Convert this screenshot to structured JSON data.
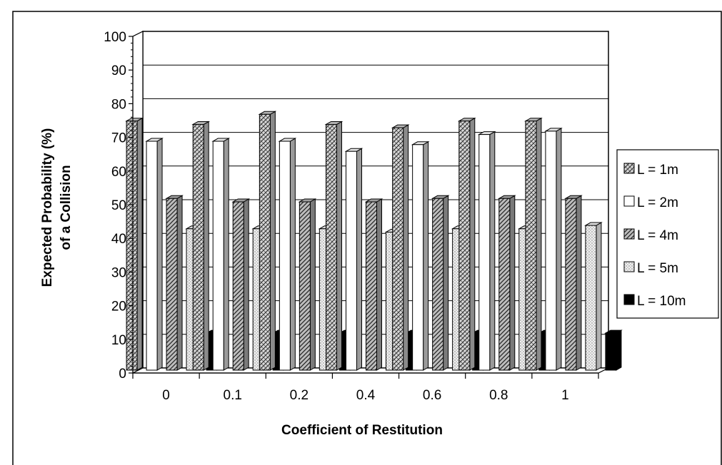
{
  "chart_data": {
    "type": "bar",
    "xlabel": "Coefficient of Restitution",
    "ylabel_lines": [
      "Expected Probability (%)",
      "of a Collision"
    ],
    "ylim": [
      0,
      100
    ],
    "yticks": [
      0,
      10,
      20,
      30,
      40,
      50,
      60,
      70,
      80,
      90,
      100
    ],
    "grid": true,
    "legend_position": "right",
    "categories": [
      "0",
      "0.1",
      "0.2",
      "0.4",
      "0.6",
      "0.8",
      "1"
    ],
    "series": [
      {
        "name": "L = 1m",
        "values": [
          74,
          73,
          76,
          73,
          72,
          74,
          74
        ],
        "pattern": "crosshatch"
      },
      {
        "name": "L = 2m",
        "values": [
          68,
          68,
          68,
          65,
          67,
          70,
          71
        ],
        "pattern": "white"
      },
      {
        "name": "L = 4m",
        "values": [
          51,
          50,
          50,
          50,
          51,
          51,
          51
        ],
        "pattern": "diagonal"
      },
      {
        "name": "L = 5m",
        "values": [
          42,
          42,
          42,
          41,
          42,
          42,
          43
        ],
        "pattern": "dotted"
      },
      {
        "name": "L = 10m",
        "values": [
          11,
          11,
          11,
          11,
          11,
          11,
          11
        ],
        "pattern": "black"
      }
    ]
  }
}
